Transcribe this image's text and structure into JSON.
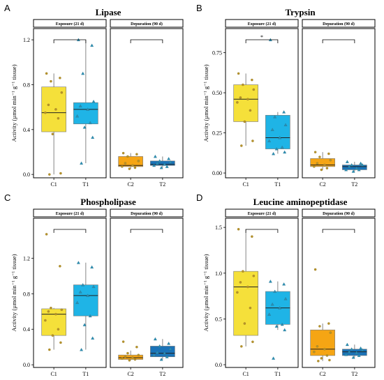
{
  "figure": {
    "y_axis_label": "Activity (µmol min⁻¹ g⁻¹ tissue)",
    "facet_labels": [
      "Exposure (21 d)",
      "Depuration (90 d)"
    ],
    "colors": {
      "C1": "#f5e03a",
      "T1": "#1fb4e6",
      "C2": "#f5a514",
      "T2": "#1a73b8",
      "box_line": "#222222",
      "point_edge": "#555555"
    }
  },
  "chart_data": [
    {
      "panel": "A",
      "title": "Lipase",
      "type": "box",
      "ylim": [
        -0.03,
        1.3
      ],
      "yticks": [
        0.0,
        0.4,
        0.8,
        1.2
      ],
      "tick_format": 1,
      "groups": [
        {
          "name": "C1",
          "facet": "Exposure (21 d)",
          "min": 0.0,
          "q1": 0.38,
          "median": 0.55,
          "q3": 0.78,
          "max": 0.9,
          "points": [
            0.9,
            0.86,
            0.83,
            0.73,
            0.62,
            0.58,
            0.55,
            0.5,
            0.36,
            0.01,
            0.0
          ]
        },
        {
          "name": "T1",
          "facet": "Exposure (21 d)",
          "min": 0.1,
          "q1": 0.45,
          "median": 0.58,
          "q3": 0.64,
          "max": 1.2,
          "points": [
            1.2,
            1.15,
            0.9,
            0.65,
            0.61,
            0.58,
            0.52,
            0.46,
            0.42,
            0.33,
            0.1
          ]
        },
        {
          "name": "C2",
          "facet": "Depuration (90 d)",
          "min": 0.05,
          "q1": 0.07,
          "median": 0.08,
          "q3": 0.16,
          "max": 0.19,
          "points": [
            0.19,
            0.18,
            0.16,
            0.12,
            0.1,
            0.08,
            0.07,
            0.06,
            0.05
          ]
        },
        {
          "name": "T2",
          "facet": "Depuration (90 d)",
          "min": 0.06,
          "q1": 0.08,
          "median": 0.09,
          "q3": 0.12,
          "max": 0.16,
          "points": [
            0.16,
            0.14,
            0.12,
            0.11,
            0.1,
            0.09,
            0.08,
            0.07,
            0.06
          ]
        }
      ],
      "significance": [
        {
          "facet": "Exposure (21 d)",
          "between": [
            "C1",
            "T1"
          ],
          "label": ""
        },
        {
          "facet": "Depuration (90 d)",
          "between": [
            "C2",
            "T2"
          ],
          "label": ""
        }
      ]
    },
    {
      "panel": "B",
      "title": "Trypsin",
      "type": "box",
      "ylim": [
        -0.03,
        0.9
      ],
      "yticks": [
        0.0,
        0.25,
        0.5,
        0.75
      ],
      "tick_format": 2,
      "groups": [
        {
          "name": "C1",
          "facet": "Exposure (21 d)",
          "min": 0.17,
          "q1": 0.32,
          "median": 0.46,
          "q3": 0.55,
          "max": 0.62,
          "points": [
            0.62,
            0.58,
            0.55,
            0.52,
            0.47,
            0.46,
            0.44,
            0.39,
            0.32,
            0.2,
            0.17
          ]
        },
        {
          "name": "T1",
          "facet": "Exposure (21 d)",
          "min": 0.12,
          "q1": 0.15,
          "median": 0.22,
          "q3": 0.36,
          "max": 0.38,
          "points": [
            0.83,
            0.38,
            0.35,
            0.3,
            0.27,
            0.22,
            0.2,
            0.16,
            0.15,
            0.13,
            0.12
          ]
        },
        {
          "name": "C2",
          "facet": "Depuration (90 d)",
          "min": 0.02,
          "q1": 0.04,
          "median": 0.05,
          "q3": 0.09,
          "max": 0.13,
          "points": [
            0.13,
            0.12,
            0.1,
            0.08,
            0.06,
            0.05,
            0.04,
            0.03,
            0.02
          ]
        },
        {
          "name": "T2",
          "facet": "Depuration (90 d)",
          "min": 0.01,
          "q1": 0.02,
          "median": 0.04,
          "q3": 0.05,
          "max": 0.07,
          "points": [
            0.07,
            0.06,
            0.05,
            0.05,
            0.04,
            0.03,
            0.02,
            0.02,
            0.01
          ]
        }
      ],
      "significance": [
        {
          "facet": "Exposure (21 d)",
          "between": [
            "C1",
            "T1"
          ],
          "label": "*"
        },
        {
          "facet": "Depuration (90 d)",
          "between": [
            "C2",
            "T2"
          ],
          "label": ""
        }
      ]
    },
    {
      "panel": "C",
      "title": "Phospholipase",
      "type": "box",
      "ylim": [
        -0.03,
        1.65
      ],
      "yticks": [
        0.0,
        0.4,
        0.8,
        1.2
      ],
      "tick_format": 1,
      "groups": [
        {
          "name": "C1",
          "facet": "Exposure (21 d)",
          "min": 0.17,
          "q1": 0.33,
          "median": 0.57,
          "q3": 0.63,
          "max": 0.64,
          "points": [
            1.47,
            1.11,
            0.64,
            0.62,
            0.6,
            0.57,
            0.5,
            0.4,
            0.33,
            0.25,
            0.17
          ]
        },
        {
          "name": "T1",
          "facet": "Exposure (21 d)",
          "min": 0.17,
          "q1": 0.55,
          "median": 0.78,
          "q3": 0.9,
          "max": 1.15,
          "points": [
            1.15,
            1.1,
            0.9,
            0.88,
            0.82,
            0.78,
            0.7,
            0.55,
            0.45,
            0.3,
            0.17
          ]
        },
        {
          "name": "C2",
          "facet": "Depuration (90 d)",
          "min": 0.05,
          "q1": 0.06,
          "median": 0.08,
          "q3": 0.11,
          "max": 0.16,
          "points": [
            0.26,
            0.2,
            0.13,
            0.11,
            0.09,
            0.08,
            0.07,
            0.06,
            0.05
          ]
        },
        {
          "name": "T2",
          "facet": "Depuration (90 d)",
          "min": 0.06,
          "q1": 0.09,
          "median": 0.13,
          "q3": 0.21,
          "max": 0.29,
          "points": [
            0.29,
            0.24,
            0.21,
            0.18,
            0.14,
            0.13,
            0.11,
            0.09,
            0.06
          ]
        }
      ],
      "significance": [
        {
          "facet": "Exposure (21 d)",
          "between": [
            "C1",
            "T1"
          ],
          "label": ""
        },
        {
          "facet": "Depuration (90 d)",
          "between": [
            "C2",
            "T2"
          ],
          "label": ""
        }
      ]
    },
    {
      "panel": "D",
      "title": "Leucine aminopeptidase",
      "type": "box",
      "ylim": [
        -0.03,
        1.6
      ],
      "yticks": [
        0.0,
        0.5,
        1.0,
        1.5
      ],
      "tick_format": 1,
      "groups": [
        {
          "name": "C1",
          "facet": "Exposure (21 d)",
          "min": 0.2,
          "q1": 0.32,
          "median": 0.85,
          "q3": 1.02,
          "max": 1.48,
          "points": [
            1.48,
            1.4,
            1.02,
            0.97,
            0.9,
            0.85,
            0.79,
            0.62,
            0.45,
            0.25,
            0.2
          ]
        },
        {
          "name": "T1",
          "facet": "Exposure (21 d)",
          "min": 0.38,
          "q1": 0.44,
          "median": 0.62,
          "q3": 0.8,
          "max": 0.91,
          "points": [
            0.91,
            0.88,
            0.8,
            0.72,
            0.66,
            0.62,
            0.55,
            0.44,
            0.42,
            0.38,
            0.07
          ]
        },
        {
          "name": "C2",
          "facet": "Depuration (90 d)",
          "min": 0.04,
          "q1": 0.1,
          "median": 0.17,
          "q3": 0.38,
          "max": 0.45,
          "points": [
            1.04,
            0.45,
            0.42,
            0.35,
            0.2,
            0.17,
            0.14,
            0.1,
            0.07,
            0.05,
            0.04
          ]
        },
        {
          "name": "T2",
          "facet": "Depuration (90 d)",
          "min": 0.08,
          "q1": 0.1,
          "median": 0.14,
          "q3": 0.17,
          "max": 0.22,
          "points": [
            0.22,
            0.18,
            0.17,
            0.16,
            0.14,
            0.13,
            0.11,
            0.1,
            0.08
          ]
        }
      ],
      "significance": [
        {
          "facet": "Exposure (21 d)",
          "between": [
            "C1",
            "T1"
          ],
          "label": ""
        },
        {
          "facet": "Depuration (90 d)",
          "between": [
            "C2",
            "T2"
          ],
          "label": ""
        }
      ]
    }
  ]
}
